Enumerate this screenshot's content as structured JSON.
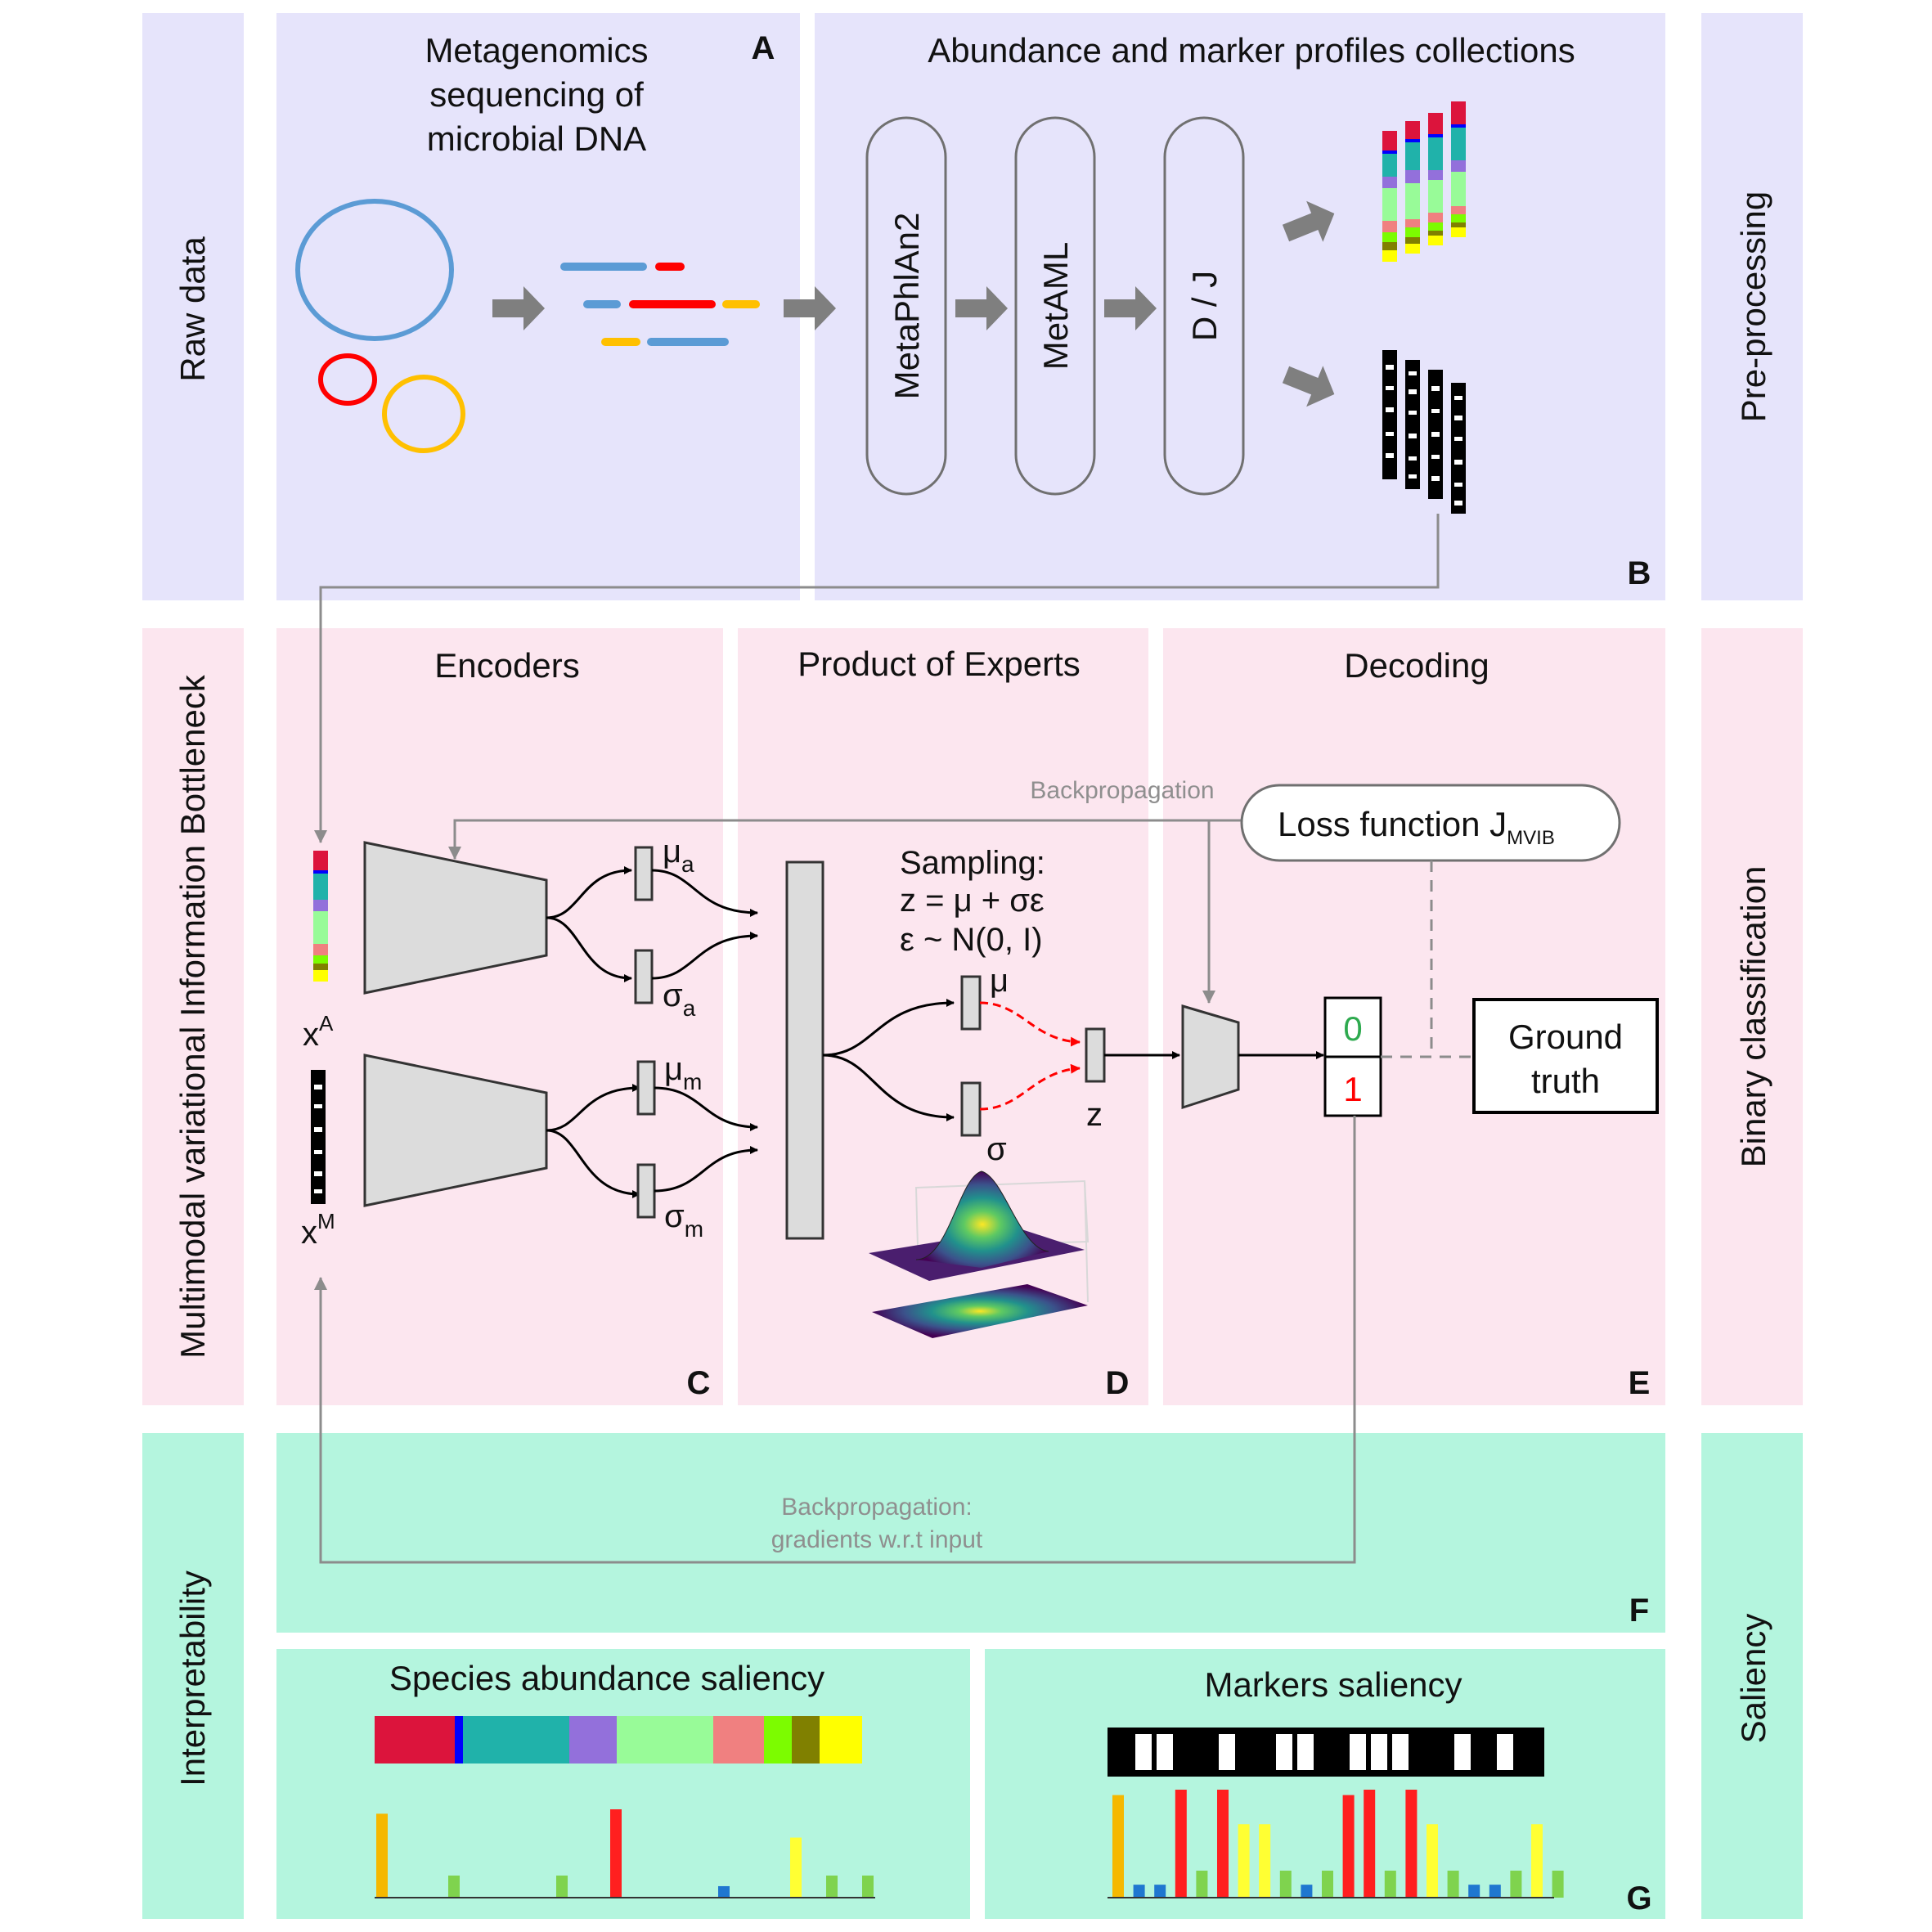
{
  "side_labels": {
    "raw_data": "Raw data",
    "mvib": "Multimodal variational Information Bottleneck",
    "interpretability": "Interpretability",
    "pre_processing": "Pre-processing",
    "binary_classification": "Binary classification",
    "saliency": "Saliency"
  },
  "panel_letters": {
    "a": "A",
    "b": "B",
    "c": "C",
    "d": "D",
    "e": "E",
    "f": "F",
    "g": "G"
  },
  "panel_a": {
    "title_lines": [
      "Metagenomics",
      "sequencing of",
      "microbial DNA"
    ]
  },
  "panel_b": {
    "title": "Abundance and marker profiles collections",
    "tools": [
      "MetaPhlAn2",
      "MetAML",
      "D / J"
    ]
  },
  "sections": {
    "encoders": "Encoders",
    "poe": "Product of Experts",
    "decoding": "Decoding"
  },
  "backprop": "Backpropagation",
  "loss": {
    "label": "Loss function J",
    "subscript": "MVIB"
  },
  "sampling_lines": [
    "Sampling:",
    "z = μ + σε",
    "ε ~ N(0, I)"
  ],
  "inputs": {
    "xa": "x",
    "xa_sup": "A",
    "xm": "x",
    "xm_sup": "M"
  },
  "params": {
    "mu": "μ",
    "sigma": "σ",
    "sub_a": "a",
    "sub_m": "m",
    "z": "z"
  },
  "outputs": {
    "zero": "0",
    "one": "1"
  },
  "ground_truth_lines": [
    "Ground",
    "truth"
  ],
  "backprop_gradients_lines": [
    "Backpropagation:",
    "gradients w.r.t input"
  ],
  "saliency": {
    "species_title": "Species abundance saliency",
    "markers_title": "Markers saliency",
    "species_bars": [
      0.95,
      0,
      0,
      0,
      0.25,
      0,
      0,
      0,
      0,
      0,
      0.25,
      0,
      0,
      1.0,
      0,
      0,
      0,
      0,
      0,
      0.13,
      0,
      0,
      0,
      0.68,
      0,
      0.25,
      0,
      0.25
    ],
    "marker_bars": [
      0.95,
      0.12,
      0.12,
      1.0,
      0.25,
      1.0,
      0.68,
      0.68,
      0.25,
      0.12,
      0.25,
      0.95,
      1.0,
      0.25,
      1.0,
      0.68,
      0.25,
      0.12,
      0.12,
      0.25,
      0.68,
      0.25
    ]
  },
  "colors": {
    "panel_purple": "#e6e4fb",
    "panel_pink": "#fce6ef",
    "panel_green": "#b4f5de",
    "circle_blue": "#5b9bd5",
    "circle_red": "#ff0000",
    "circle_orange": "#ffc000",
    "species": [
      "#dc143c",
      "#0000ff",
      "#20b2aa",
      "#9370db",
      "#98fb98",
      "#f08080",
      "#7cfc00",
      "#808000",
      "#ffff00"
    ]
  }
}
